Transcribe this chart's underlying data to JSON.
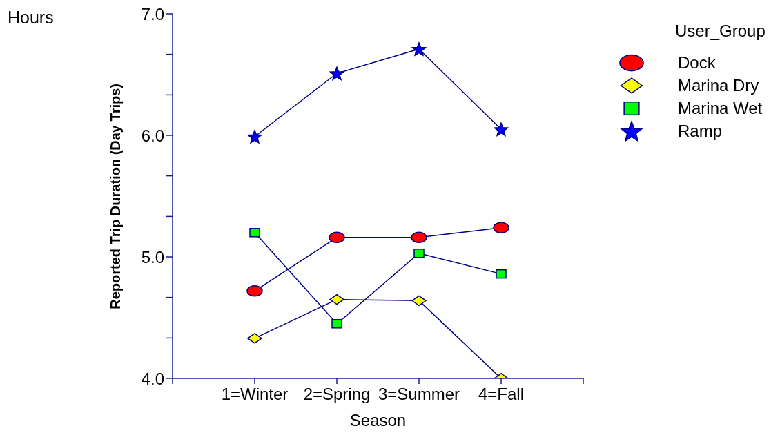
{
  "chart_data": {
    "type": "line",
    "ylabel": "Reported Trip Duration (Day Trips)",
    "xlabel": "Season",
    "legend_title": "User_Group",
    "annotations": [
      "Hours"
    ],
    "categories": [
      "1=Winter",
      "2=Spring",
      "3=Summer",
      "4=Fall"
    ],
    "series": [
      {
        "name": "Dock",
        "color": "#ff0000",
        "marker": "circle",
        "values": [
          4.72,
          5.16,
          5.16,
          5.24
        ]
      },
      {
        "name": "Marina Dry",
        "color": "#ffff00",
        "marker": "diamond",
        "values": [
          4.33,
          4.65,
          4.64,
          4.0
        ]
      },
      {
        "name": "Marina Wet",
        "color": "#00ff00",
        "marker": "square",
        "values": [
          5.2,
          4.45,
          5.03,
          4.86
        ]
      },
      {
        "name": "Ramp",
        "color": "#0000ff",
        "marker": "star",
        "values": [
          5.99,
          6.51,
          6.71,
          6.05
        ]
      }
    ],
    "ylim": [
      4,
      7
    ],
    "yticks": [
      {
        "value": 4,
        "label": "4.0"
      },
      {
        "value": 4.333,
        "label": null
      },
      {
        "value": 4.667,
        "label": null
      },
      {
        "value": 5,
        "label": "5.0"
      },
      {
        "value": 5.333,
        "label": null
      },
      {
        "value": 5.667,
        "label": null
      },
      {
        "value": 6,
        "label": "6.0"
      },
      {
        "value": 6.333,
        "label": null
      },
      {
        "value": 6.667,
        "label": null
      },
      {
        "value": 7,
        "label": "7.0"
      }
    ],
    "legend": "top right",
    "line_style": "solid"
  }
}
